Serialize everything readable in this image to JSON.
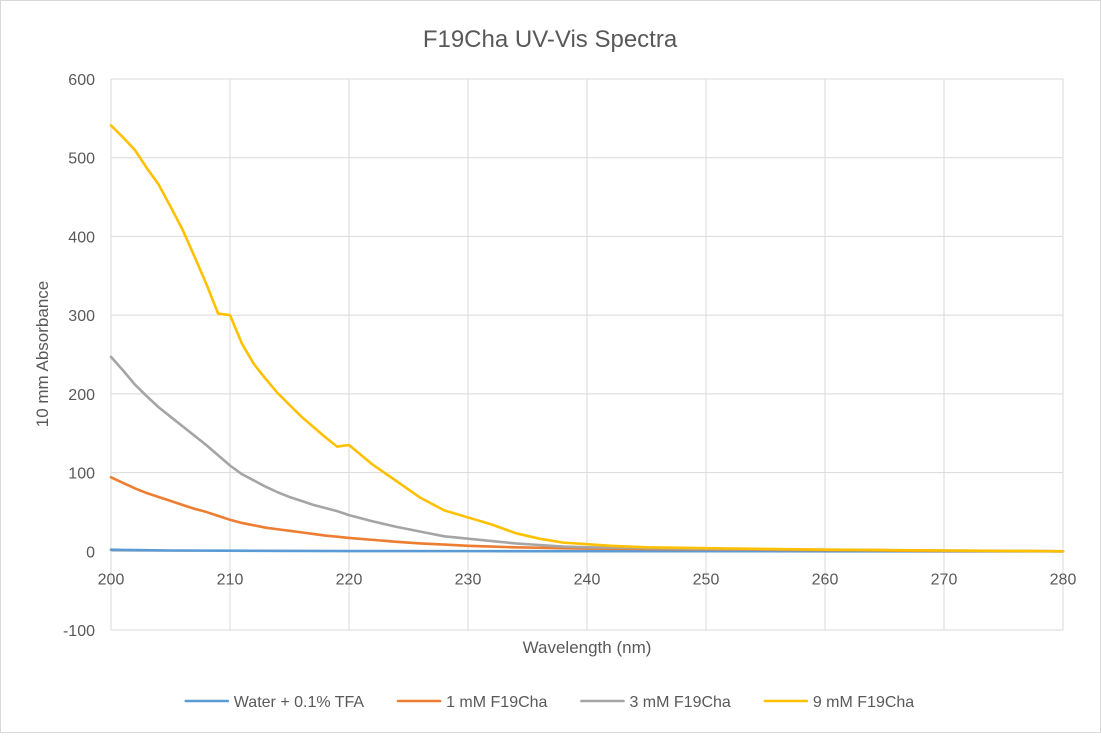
{
  "chart_data": {
    "type": "line",
    "title": "F19Cha UV-Vis Spectra",
    "xlabel": "Wavelength (nm)",
    "ylabel": "10 mm Absorbance",
    "xlim": [
      200,
      280
    ],
    "ylim": [
      -100,
      600
    ],
    "x_ticks": [
      200,
      210,
      220,
      230,
      240,
      250,
      260,
      270,
      280
    ],
    "y_ticks": [
      -100,
      0,
      100,
      200,
      300,
      400,
      500,
      600
    ],
    "grid": true,
    "legend_position": "bottom",
    "series": [
      {
        "name": "Water + 0.1% TFA",
        "color": "#5B9BD5",
        "x": [
          200,
          202,
          205,
          210,
          220,
          230,
          240,
          250,
          260,
          270,
          280
        ],
        "y": [
          2,
          1.5,
          1,
          0.7,
          0.3,
          0.2,
          0.1,
          0.1,
          0,
          0,
          0
        ]
      },
      {
        "name": "1 mM F19Cha",
        "color": "#ED7D31",
        "x": [
          200,
          201,
          202,
          203,
          204,
          205,
          206,
          207,
          208,
          209,
          210,
          211,
          212,
          213,
          214,
          215,
          216,
          217,
          218,
          219,
          220,
          222,
          224,
          226,
          228,
          230,
          232,
          234,
          236,
          238,
          240,
          245,
          250,
          255,
          260,
          265,
          270,
          275,
          280
        ],
        "y": [
          94,
          87,
          80,
          74,
          69,
          64,
          59,
          54,
          50,
          45,
          40,
          36,
          33,
          30,
          28,
          26,
          24,
          22,
          20,
          18.5,
          17,
          14.5,
          12,
          10,
          8.5,
          7,
          6,
          5,
          4.5,
          4,
          3.5,
          3,
          2.5,
          2,
          1.5,
          1,
          0.5,
          0.3,
          0
        ]
      },
      {
        "name": "3 mM F19Cha",
        "color": "#A5A5A5",
        "x": [
          200,
          201,
          202,
          203,
          204,
          205,
          206,
          207,
          208,
          209,
          210,
          211,
          212,
          213,
          214,
          215,
          216,
          217,
          218,
          219,
          220,
          222,
          224,
          226,
          228,
          230,
          232,
          234,
          236,
          238,
          240,
          245,
          250,
          255,
          260,
          265,
          270,
          275,
          280
        ],
        "y": [
          247,
          230,
          212,
          197,
          183,
          171,
          159,
          147,
          135,
          122,
          109,
          98,
          90,
          82,
          75,
          69,
          64,
          59,
          55,
          51,
          46,
          38,
          31,
          25,
          19,
          16,
          13,
          10,
          8,
          6,
          5,
          4,
          3,
          2.5,
          2,
          1.5,
          1,
          0.5,
          0
        ]
      },
      {
        "name": "9 mM F19Cha",
        "color": "#FFC000",
        "x": [
          200,
          201,
          202,
          203,
          204,
          205,
          206,
          207,
          208,
          209,
          210,
          211,
          212,
          213,
          214,
          215,
          216,
          217,
          218,
          219,
          220,
          222,
          224,
          226,
          228,
          230,
          232,
          234,
          236,
          238,
          240,
          242,
          245,
          250,
          255,
          260,
          265,
          270,
          275,
          280
        ],
        "y": [
          541,
          526,
          510,
          487,
          466,
          438,
          409,
          375,
          340,
          302,
          300,
          264,
          238,
          219,
          201,
          186,
          171,
          158,
          145,
          133,
          135,
          110,
          89,
          68,
          52,
          43,
          34,
          23,
          16,
          11,
          9,
          7,
          5,
          4,
          3,
          2,
          1.5,
          1,
          0.5,
          0
        ]
      }
    ]
  }
}
